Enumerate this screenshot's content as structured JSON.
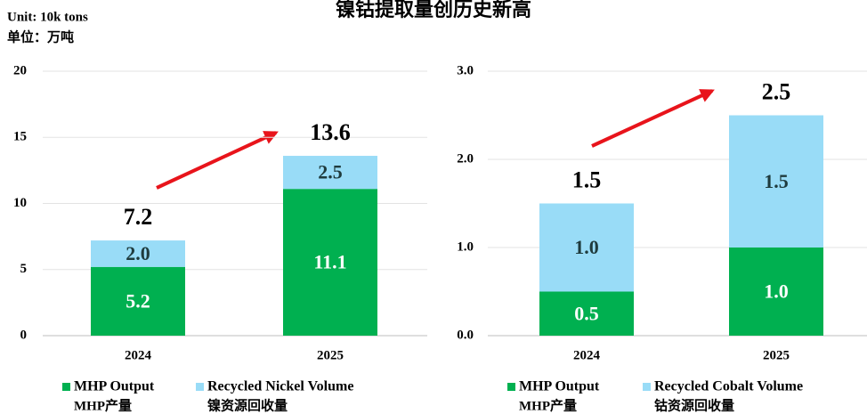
{
  "header": {
    "title": "镍钴提取量创历史新高",
    "unit_en": "Unit: 10k tons",
    "unit_zh": "单位：万吨"
  },
  "chart_data": [
    {
      "type": "stacked_bar",
      "categories": [
        "2024",
        "2025"
      ],
      "series": [
        {
          "name": "MHP Output",
          "name_zh": "MHP产量",
          "color": "#00b050",
          "values": [
            5.2,
            11.1
          ]
        },
        {
          "name": "Recycled Nickel Volume",
          "name_zh": "镍资源回收量",
          "color": "#99dcf7",
          "values": [
            2.0,
            2.5
          ],
          "value_labels": [
            "2.0",
            "2.5"
          ]
        }
      ],
      "totals": [
        7.2,
        13.6
      ],
      "ylim": [
        0,
        20
      ],
      "yticks": [
        0,
        5,
        10,
        15,
        20
      ],
      "grid": true
    },
    {
      "type": "stacked_bar",
      "categories": [
        "2024",
        "2025"
      ],
      "series": [
        {
          "name": "MHP Output",
          "name_zh": "MHP产量",
          "color": "#00b050",
          "values": [
            0.5,
            1.0
          ],
          "value_labels": [
            "0.5",
            "1.0"
          ]
        },
        {
          "name": "Recycled Cobalt Volume",
          "name_zh": "钴资源回收量",
          "color": "#99dcf7",
          "values": [
            1.0,
            1.5
          ],
          "value_labels": [
            "1.0",
            "1.5"
          ]
        }
      ],
      "totals": [
        1.5,
        2.5
      ],
      "ylim": [
        0,
        3
      ],
      "yticks": [
        {
          "value": 0,
          "label": "0.0"
        },
        {
          "value": 1,
          "label": "1.0"
        },
        {
          "value": 2,
          "label": "2.0"
        },
        {
          "value": 3,
          "label": "3.0"
        }
      ],
      "grid": true
    }
  ]
}
